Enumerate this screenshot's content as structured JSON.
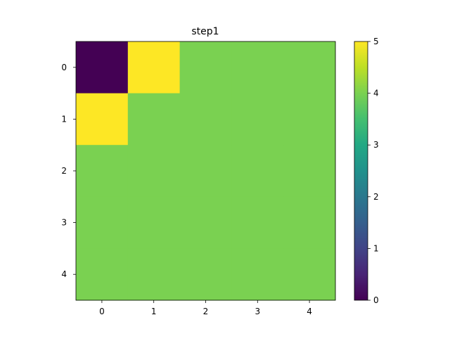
{
  "chart_data": {
    "type": "heatmap",
    "title": "step1",
    "xlabel": "",
    "ylabel": "",
    "x_ticks": [
      "0",
      "1",
      "2",
      "3",
      "4"
    ],
    "y_ticks": [
      "0",
      "1",
      "2",
      "3",
      "4"
    ],
    "grid": false,
    "colormap": "viridis",
    "vmin": 0,
    "vmax": 5,
    "colorbar_ticks": [
      "0",
      "1",
      "2",
      "3",
      "4",
      "5"
    ],
    "values": [
      [
        0,
        5,
        4,
        4,
        4
      ],
      [
        5,
        4,
        4,
        4,
        4
      ],
      [
        4,
        4,
        4,
        4,
        4
      ],
      [
        4,
        4,
        4,
        4,
        4
      ],
      [
        4,
        4,
        4,
        4,
        4
      ]
    ]
  }
}
